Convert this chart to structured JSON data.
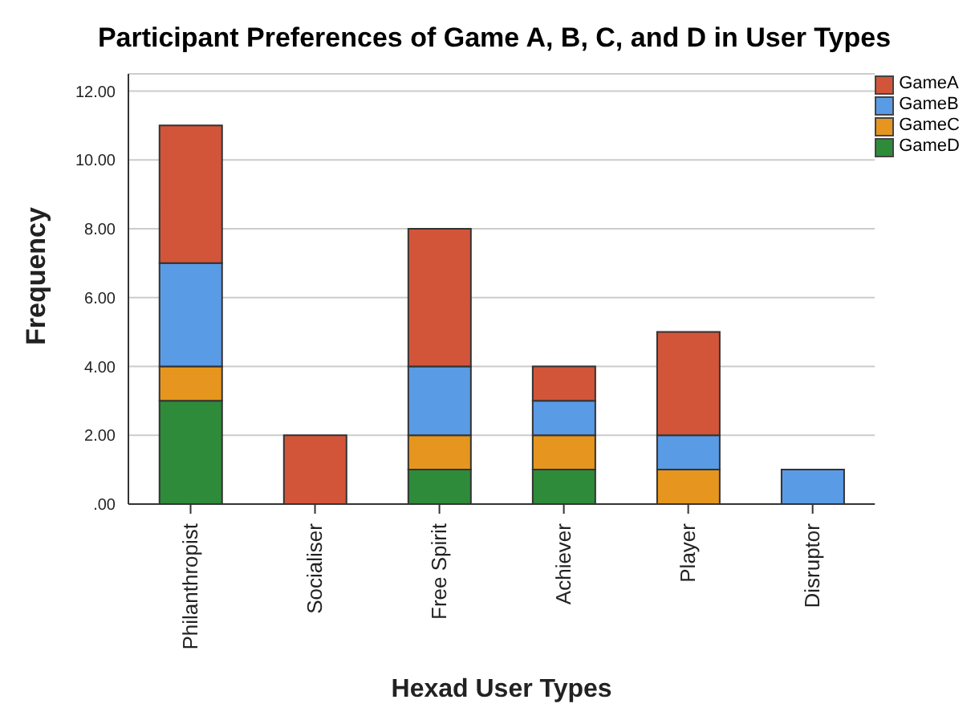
{
  "chart_data": {
    "type": "bar",
    "title": "Participant Preferences of Game A, B, C, and D in User Types",
    "xlabel": "Hexad User Types",
    "ylabel": "Frequency",
    "categories": [
      "Philanthropist",
      "Socialiser",
      "Free Spirit",
      "Achiever",
      "Player",
      "Disruptor"
    ],
    "stacked": true,
    "series": [
      {
        "name": "GameD",
        "color": "#2e8b3a",
        "values": [
          3,
          0,
          1,
          1,
          0,
          0
        ]
      },
      {
        "name": "GameC",
        "color": "#e6961e",
        "values": [
          1,
          0,
          1,
          1,
          1,
          0
        ]
      },
      {
        "name": "GameB",
        "color": "#5a9be6",
        "values": [
          3,
          0,
          2,
          1,
          1,
          1
        ]
      },
      {
        "name": "GameA",
        "color": "#d2553a",
        "values": [
          4,
          2,
          4,
          1,
          3,
          0
        ]
      }
    ],
    "ylim": [
      0,
      12.5
    ],
    "yticks": [
      {
        "value": 0,
        "label": ".00"
      },
      {
        "value": 2,
        "label": "2.00"
      },
      {
        "value": 4,
        "label": "4.00"
      },
      {
        "value": 6,
        "label": "6.00"
      },
      {
        "value": 8,
        "label": "8.00"
      },
      {
        "value": 10,
        "label": "10.00"
      },
      {
        "value": 12,
        "label": "12.00"
      }
    ],
    "grid": "y",
    "legend": "top right"
  }
}
